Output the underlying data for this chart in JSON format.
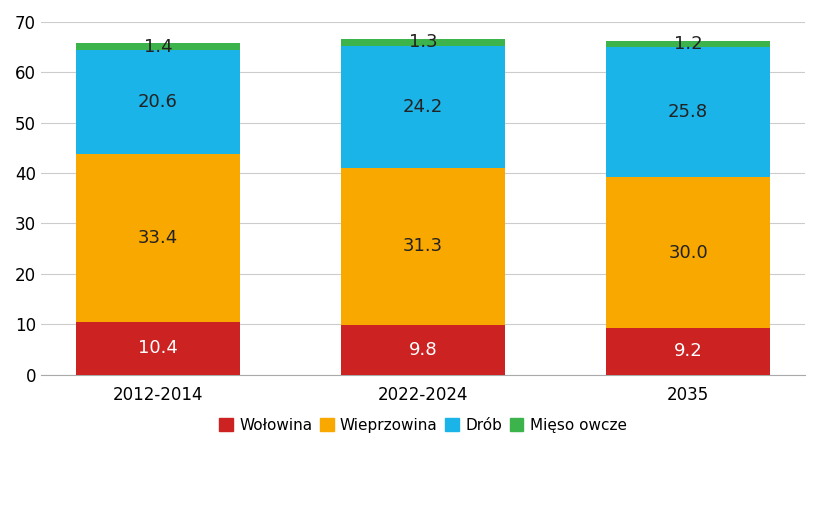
{
  "categories": [
    "2012-2014",
    "2022-2024",
    "2035"
  ],
  "series": {
    "Wołowina": [
      10.4,
      9.8,
      9.2
    ],
    "Wieprzowina": [
      33.4,
      31.3,
      30.0
    ],
    "Drób": [
      20.6,
      24.2,
      25.8
    ],
    "Mięso owcze": [
      1.4,
      1.3,
      1.2
    ]
  },
  "colors": {
    "Wołowina": "#cc2222",
    "Wieprzowina": "#f9a800",
    "Drób": "#1ab4e8",
    "Mięso owcze": "#3cb44b"
  },
  "text_colors": {
    "Wołowina": "#ffffff",
    "Wieprzowina": "#222222",
    "Drób": "#222222",
    "Mięso owcze": "#222222"
  },
  "ylim": [
    0,
    70
  ],
  "yticks": [
    0,
    10,
    20,
    30,
    40,
    50,
    60,
    70
  ],
  "bar_width": 0.62,
  "background_color": "#ffffff",
  "label_fontsize": 13,
  "legend_fontsize": 11,
  "tick_fontsize": 12,
  "grid_color": "#cccccc",
  "spine_color": "#aaaaaa"
}
